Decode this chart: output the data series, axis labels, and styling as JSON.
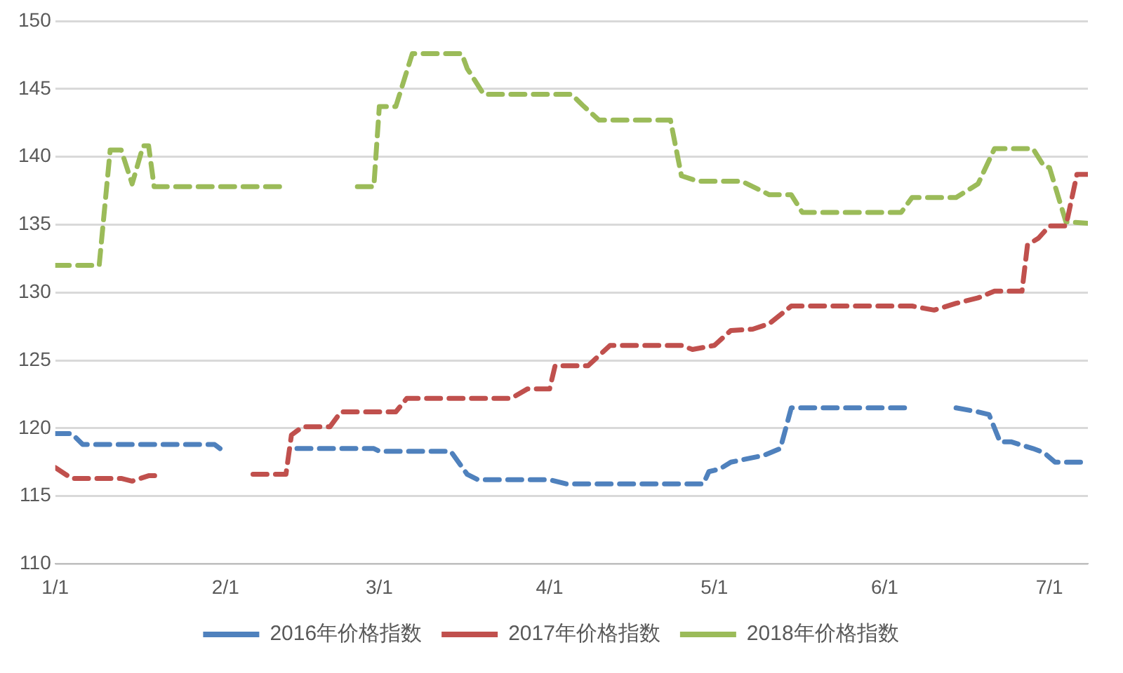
{
  "chart_data": {
    "type": "line",
    "line_style": "dashed",
    "marker": "none",
    "grid": "y",
    "legend": "bottom",
    "xlim": [
      "--01-01",
      "--07-08"
    ],
    "xticks": [
      {
        "value": "--01-01",
        "label": "1/1"
      },
      {
        "value": "--02-01",
        "label": "2/1"
      },
      {
        "value": "--03-01",
        "label": "3/1"
      },
      {
        "value": "--04-01",
        "label": "4/1"
      },
      {
        "value": "--05-01",
        "label": "5/1"
      },
      {
        "value": "--06-01",
        "label": "6/1"
      },
      {
        "value": "--07-01",
        "label": "7/1"
      }
    ],
    "ylim": [
      110,
      150
    ],
    "yticks": [
      110,
      115,
      120,
      125,
      130,
      135,
      140,
      145,
      150
    ],
    "series": [
      {
        "name": "2016年价格指数",
        "color": "#4f81bd",
        "x": [
          "--01-01",
          "--01-04",
          "--01-06",
          "--01-30",
          "--01-31",
          "--02-05",
          "--02-14",
          "--02-28",
          "--03-01",
          "--03-14",
          "--03-17",
          "--03-19",
          "--04-01",
          "--04-04",
          "--04-29",
          "--04-30",
          "--05-02",
          "--05-04",
          "--05-10",
          "--05-13",
          "--05-15",
          "--06-05",
          "--06-10",
          "--06-14",
          "--06-18",
          "--06-20",
          "--06-22",
          "--06-24",
          "--06-28",
          "--06-30",
          "--07-02",
          "--07-08"
        ],
        "values": [
          119.6,
          119.6,
          118.8,
          118.8,
          118.5,
          null,
          118.5,
          118.5,
          118.3,
          118.3,
          116.6,
          116.2,
          116.2,
          115.9,
          115.9,
          116.8,
          117,
          117.5,
          118,
          118.5,
          121.5,
          121.5,
          null,
          121.5,
          121.2,
          121,
          119,
          119,
          118.5,
          118.2,
          117.5,
          117.5
        ]
      },
      {
        "name": "2017年价格指数",
        "color": "#c0504d",
        "x": [
          "--01-01",
          "--01-04",
          "--01-13",
          "--01-15",
          "--01-18",
          "--01-20",
          "--02-01",
          "--02-06",
          "--02-12",
          "--02-13",
          "--02-15",
          "--02-20",
          "--02-22",
          "--03-04",
          "--03-06",
          "--03-25",
          "--03-28",
          "--04-01",
          "--04-02",
          "--04-08",
          "--04-12",
          "--04-25",
          "--04-27",
          "--05-01",
          "--05-04",
          "--05-08",
          "--05-11",
          "--05-15",
          "--06-06",
          "--06-10",
          "--06-14",
          "--06-18",
          "--06-21",
          "--06-26",
          "--06-27",
          "--06-29",
          "--07-01",
          "--07-04",
          "--07-06",
          "--07-08"
        ],
        "values": [
          117.1,
          116.3,
          116.3,
          116.1,
          116.5,
          116.5,
          null,
          116.6,
          116.6,
          119.5,
          120.1,
          120.1,
          121.2,
          121.2,
          122.2,
          122.2,
          122.9,
          122.9,
          124.6,
          124.6,
          126.1,
          126.1,
          125.8,
          126.1,
          127.2,
          127.3,
          127.7,
          129,
          129,
          128.7,
          129.2,
          129.6,
          130.1,
          130.1,
          133.5,
          134,
          134.9,
          134.9,
          138.7,
          138.7
        ]
      },
      {
        "name": "2018年价格指数",
        "color": "#9bbb59",
        "x": [
          "--01-01",
          "--01-09",
          "--01-11",
          "--01-13",
          "--01-15",
          "--01-17",
          "--01-18",
          "--01-19",
          "--02-11",
          "--02-18",
          "--02-25",
          "--02-28",
          "--03-01",
          "--03-04",
          "--03-07",
          "--03-16",
          "--03-17",
          "--03-20",
          "--04-05",
          "--04-07",
          "--04-10",
          "--04-23",
          "--04-25",
          "--04-28",
          "--05-06",
          "--05-11",
          "--05-15",
          "--05-17",
          "--06-04",
          "--06-06",
          "--06-14",
          "--06-18",
          "--06-21",
          "--06-28",
          "--06-30",
          "--07-01",
          "--07-04",
          "--07-08"
        ],
        "values": [
          132,
          132,
          140.5,
          140.5,
          138,
          140.8,
          140.8,
          137.8,
          137.8,
          null,
          137.8,
          137.8,
          143.7,
          143.7,
          147.6,
          147.6,
          146.5,
          144.6,
          144.6,
          143.8,
          142.7,
          142.7,
          138.6,
          138.2,
          138.2,
          137.2,
          137.2,
          135.9,
          135.9,
          137,
          137,
          138,
          140.6,
          140.6,
          139.3,
          139.2,
          135.2,
          135.1
        ]
      }
    ]
  }
}
